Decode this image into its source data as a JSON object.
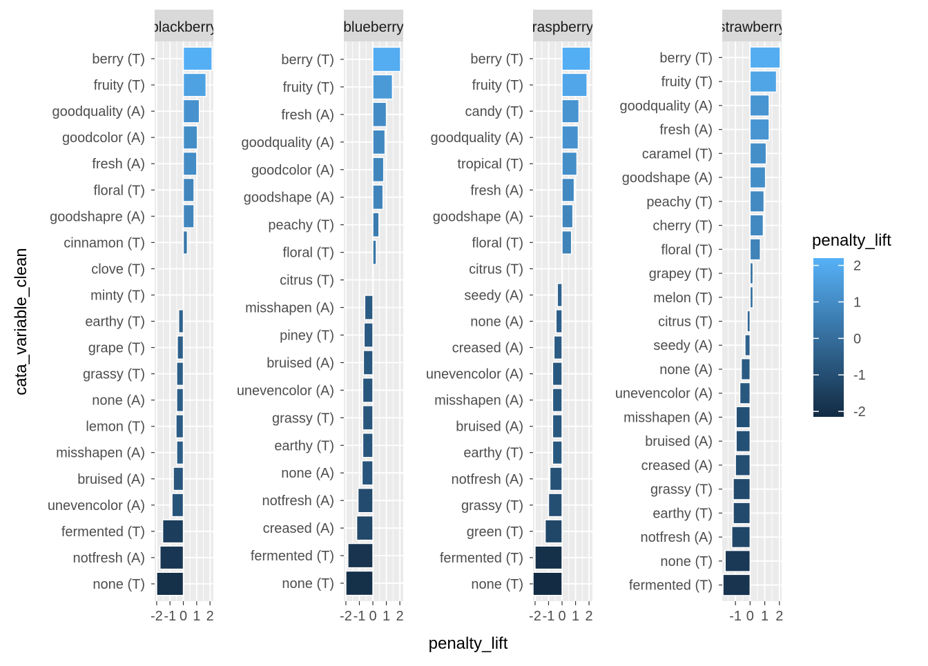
{
  "chart_data": {
    "type": "bar",
    "orientation": "horizontal",
    "xlabel": "penalty_lift",
    "ylabel": "cata_variable_clean",
    "grid": true,
    "colors": {
      "low": "#132B43",
      "high": "#56B1F7",
      "panel_bg": "#EBEBEB",
      "strip_bg": "#D9D9D9",
      "grid": "#FFFFFF"
    },
    "legend": {
      "title": "penalty_lift",
      "position": "right",
      "ticks": [
        2,
        1,
        0,
        -1,
        -2
      ],
      "range": [
        -2.15,
        2.2
      ]
    },
    "panels": [
      {
        "strip": "blackberry",
        "xlim": [
          -2.15,
          2.25
        ],
        "xticks": [
          -2,
          -1,
          0,
          1,
          2
        ],
        "xtick_labels": [
          "-2",
          "-1",
          "0",
          "1",
          "2"
        ],
        "categories": [
          "berry (T)",
          "fruity (T)",
          "goodquality (A)",
          "goodcolor (A)",
          "fresh (A)",
          "floral (T)",
          "goodshapre (A)",
          "cinnamon (T)",
          "clove (T)",
          "minty (T)",
          "earthy (T)",
          "grape (T)",
          "grassy (T)",
          "none (A)",
          "lemon (T)",
          "misshapen (A)",
          "bruised (A)",
          "unevencolor (A)",
          "fermented (T)",
          "notfresh (A)",
          "none (T)"
        ],
        "values": [
          2.15,
          1.7,
          1.2,
          1.05,
          1.0,
          0.8,
          0.8,
          0.3,
          0.0,
          0.0,
          -0.35,
          -0.45,
          -0.5,
          -0.5,
          -0.55,
          -0.5,
          -0.75,
          -0.85,
          -1.55,
          -1.75,
          -2.0
        ]
      },
      {
        "strip": "blueberry",
        "xlim": [
          -2.15,
          2.25
        ],
        "xticks": [
          -2,
          -1,
          0,
          1,
          2
        ],
        "xtick_labels": [
          "-2",
          "-1",
          "0",
          "1",
          "2"
        ],
        "categories": [
          "berry (T)",
          "fruity (T)",
          "fresh (A)",
          "goodquality (A)",
          "goodcolor (A)",
          "goodshape (A)",
          "peachy (T)",
          "floral (T)",
          "citrus (T)",
          "misshapen (A)",
          "piney (T)",
          "bruised (A)",
          "unevencolor (A)",
          "grassy (T)",
          "earthy (T)",
          "none (A)",
          "notfresh (A)",
          "creased (A)",
          "fermented (T)",
          "none (T)"
        ],
        "values": [
          2.05,
          1.45,
          1.0,
          0.9,
          0.8,
          0.75,
          0.45,
          0.25,
          0.0,
          -0.6,
          -0.65,
          -0.7,
          -0.75,
          -0.75,
          -0.75,
          -0.8,
          -1.1,
          -1.2,
          -1.85,
          -2.0
        ]
      },
      {
        "strip": "raspberry",
        "xlim": [
          -2.15,
          2.25
        ],
        "xticks": [
          -2,
          -1,
          0,
          1,
          2
        ],
        "xtick_labels": [
          "-2",
          "-1",
          "0",
          "1",
          "2"
        ],
        "categories": [
          "berry (T)",
          "fruity (T)",
          "candy (T)",
          "goodquality (A)",
          "tropical (T)",
          "fresh (A)",
          "goodshape (A)",
          "floral (T)",
          "citrus (T)",
          "seedy (A)",
          "none (A)",
          "creased (A)",
          "unevencolor (A)",
          "misshapen (A)",
          "bruised (A)",
          "earthy (T)",
          "notfresh (A)",
          "grassy (T)",
          "green (T)",
          "fermented (T)",
          "none (T)"
        ],
        "values": [
          2.1,
          1.85,
          1.25,
          1.2,
          1.1,
          0.9,
          0.8,
          0.7,
          0.0,
          -0.35,
          -0.45,
          -0.6,
          -0.7,
          -0.7,
          -0.7,
          -0.7,
          -0.9,
          -1.0,
          -1.25,
          -2.0,
          -2.15
        ]
      },
      {
        "strip": "strawberry",
        "xlim": [
          -1.9,
          2.15
        ],
        "xticks": [
          -1,
          0,
          1,
          2
        ],
        "xtick_labels": [
          "-1",
          "0",
          "1",
          "2"
        ],
        "categories": [
          "berry (T)",
          "fruity (T)",
          "goodquality (A)",
          "fresh (A)",
          "caramel (T)",
          "goodshape (A)",
          "peachy (T)",
          "cherry (T)",
          "floral (T)",
          "grapey (T)",
          "melon (T)",
          "citrus (T)",
          "seedy (A)",
          "none (A)",
          "unevencolor (A)",
          "misshapen (A)",
          "bruised (A)",
          "creased (A)",
          "grassy (T)",
          "earthy (T)",
          "notfresh (A)",
          "none (T)",
          "fermented (T)"
        ],
        "values": [
          2.05,
          1.8,
          1.3,
          1.3,
          1.1,
          1.05,
          0.95,
          0.9,
          0.7,
          0.2,
          0.2,
          -0.2,
          -0.35,
          -0.6,
          -0.7,
          -0.95,
          -0.95,
          -1.0,
          -1.15,
          -1.15,
          -1.25,
          -1.7,
          -1.85
        ]
      }
    ]
  }
}
